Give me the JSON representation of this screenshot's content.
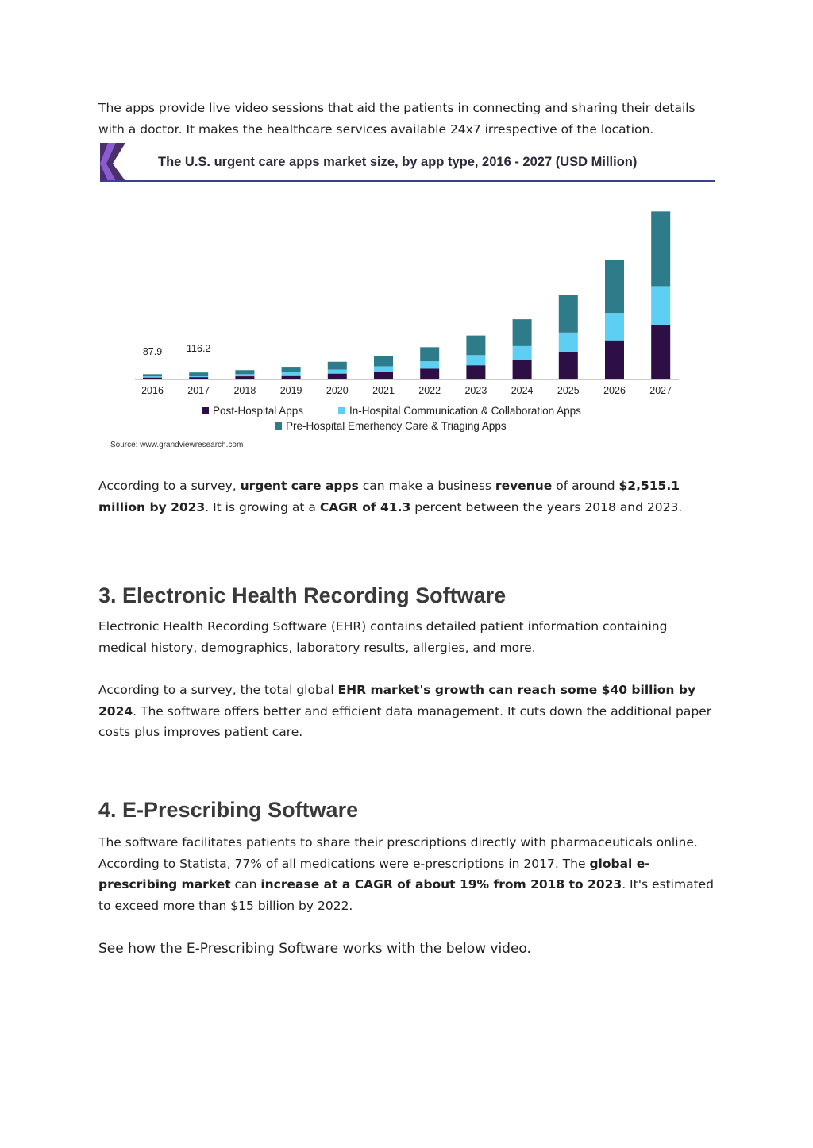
{
  "intro": {
    "text": "The apps provide live video sessions that aid the patients in connecting and sharing their details with a doctor. It makes the healthcare services available 24x7 irrespective of the location."
  },
  "chart_data": {
    "type": "bar",
    "stacked": true,
    "title": "The U.S. urgent care apps market size, by app type, 2016 - 2027 (USD Million)",
    "categories": [
      "2016",
      "2017",
      "2018",
      "2019",
      "2020",
      "2021",
      "2022",
      "2023",
      "2024",
      "2025",
      "2026",
      "2027"
    ],
    "series": [
      {
        "name": "Post-Hospital Apps",
        "color": "#2e0f45",
        "values": [
          31,
          38,
          52,
          70,
          97,
          128,
          178,
          235,
          325,
          458,
          650,
          910
        ]
      },
      {
        "name": "In-Hospital Communication & Collaboration Apps",
        "color": "#5ccff2",
        "values": [
          20,
          28,
          36,
          49,
          68,
          90,
          123,
          170,
          230,
          322,
          456,
          640
        ]
      },
      {
        "name": "Pre-Hospital Emerhency Care & Triaging Apps",
        "color": "#2e7b8a",
        "values": [
          37,
          50,
          67,
          91,
          128,
          170,
          235,
          325,
          445,
          622,
          885,
          1240
        ]
      }
    ],
    "data_labels": [
      {
        "category": "2016",
        "text": "87.9"
      },
      {
        "category": "2017",
        "text": "116.2"
      }
    ],
    "ylim": [
      0,
      2900
    ],
    "grid": false,
    "legend_position": "bottom",
    "source": "Source: www.grandviewresearch.com"
  },
  "revenue": {
    "t1": "According to a survey, ",
    "b1": "urgent care apps",
    "t2": " can make a business ",
    "b2": "revenue",
    "t3": " of around ",
    "b3": "$2,515.1 million by 2023",
    "t4": ". It is growing at a ",
    "b4": "CAGR of 41.3",
    "t5": " percent between the years 2018 and 2023."
  },
  "ehr": {
    "heading": "3. Electronic Health Recording Software",
    "p1": "Electronic Health Recording Software (EHR) contains detailed patient information containing medical history, demographics, laboratory results, allergies, and more.",
    "p2_t1": "According to a survey, the total global ",
    "p2_b1": "EHR market's growth can reach some $40 billion by 2024",
    "p2_t2": ". The software offers better and efficient data management. It cuts down the additional paper costs plus improves patient care."
  },
  "erx": {
    "heading": "4. E-Prescribing Software",
    "t1": "The software facilitates patients to share their prescriptions directly with pharmaceuticals online. According to Statista, 77% of all medications were e-prescriptions in 2017. The ",
    "b1": "global e-prescribing market",
    "t2": " can ",
    "b2": "increase at a CAGR of about 19% from 2018 to 2023",
    "t3": ".  It's estimated to exceed more than $15 billion by 2022.",
    "video_line": "See how the E-Prescribing Software works with the below video."
  }
}
